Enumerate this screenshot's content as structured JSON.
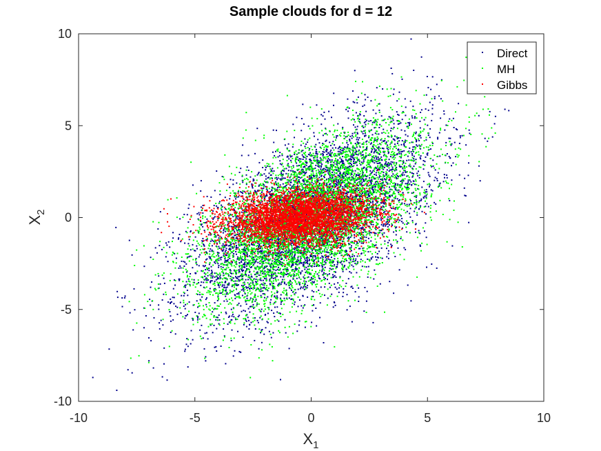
{
  "chart_data": {
    "type": "scatter",
    "title": "Sample clouds for d = 12",
    "xlabel": {
      "base": "X",
      "sub": "1"
    },
    "ylabel": {
      "base": "X",
      "sub": "2"
    },
    "xlim": [
      -10,
      10
    ],
    "ylim": [
      -10,
      10
    ],
    "xticks": [
      -10,
      -5,
      0,
      5,
      10
    ],
    "yticks": [
      -10,
      -5,
      0,
      5,
      10
    ],
    "grid": false,
    "legend_position": "top-right",
    "series": [
      {
        "name": "Direct",
        "color": "#00008b",
        "distribution": {
          "mean": [
            0,
            0
          ],
          "sd": [
            2.6,
            2.6
          ],
          "corr": 0.6
        },
        "points_approx": 5000
      },
      {
        "name": "MH",
        "color": "#00ff00",
        "distribution": {
          "mean": [
            0,
            0
          ],
          "sd": [
            2.4,
            2.4
          ],
          "corr": 0.6
        },
        "points_approx": 5000
      },
      {
        "name": "Gibbs",
        "color": "#ff0000",
        "distribution": {
          "mean": [
            -0.5,
            0
          ],
          "sd": [
            1.6,
            0.75
          ],
          "corr": 0.2
        },
        "points_approx": 4000
      }
    ]
  }
}
